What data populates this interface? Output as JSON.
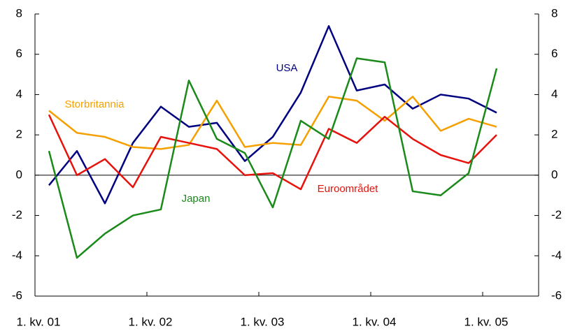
{
  "chart_data": {
    "type": "line",
    "categories": [
      "1. kv. 01",
      null,
      null,
      null,
      "1. kv. 02",
      null,
      null,
      null,
      "1. kv. 03",
      null,
      null,
      null,
      "1. kv. 04",
      null,
      null,
      null,
      "1. kv. 05"
    ],
    "series": [
      {
        "name": "USA",
        "color": "#000080",
        "values": [
          -0.5,
          1.2,
          -1.4,
          1.6,
          3.4,
          2.4,
          2.6,
          0.7,
          1.9,
          4.1,
          7.4,
          4.2,
          4.5,
          3.3,
          4.0,
          3.8,
          3.1
        ]
      },
      {
        "name": "Storbritannia",
        "color": "#f5a000",
        "values": [
          3.2,
          2.1,
          1.9,
          1.4,
          1.3,
          1.5,
          3.7,
          1.4,
          1.6,
          1.5,
          3.9,
          3.7,
          2.7,
          3.9,
          2.2,
          2.8,
          2.4
        ]
      },
      {
        "name": "Euroområdet",
        "color": "#e8120c",
        "values": [
          3.0,
          0.0,
          0.8,
          -0.6,
          1.9,
          1.6,
          1.3,
          0.0,
          0.1,
          -0.7,
          2.3,
          1.6,
          2.9,
          1.8,
          1.0,
          0.6,
          2.0
        ]
      },
      {
        "name": "Japan",
        "color": "#1a8a1a",
        "values": [
          1.2,
          -4.1,
          -2.9,
          -2.0,
          -1.7,
          4.7,
          1.8,
          1.1,
          -1.6,
          2.7,
          1.8,
          5.8,
          5.6,
          -0.8,
          -1.0,
          0.1,
          5.3
        ]
      }
    ],
    "ylim": [
      -6,
      8
    ],
    "yticks": [
      -6,
      -4,
      -2,
      0,
      2,
      4,
      6,
      8
    ],
    "y2lim": [
      -6,
      8
    ],
    "y2ticks": [
      -6,
      -4,
      -2,
      0,
      2,
      4,
      6,
      8
    ]
  }
}
